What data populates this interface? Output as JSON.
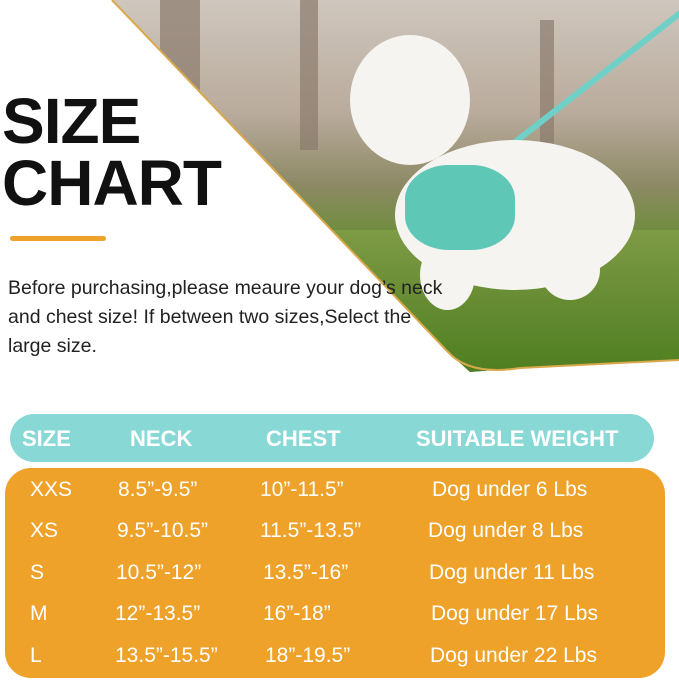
{
  "heading": {
    "line1": "SIZE",
    "line2": "CHART"
  },
  "intro": "Before purchasing,please meaure your dog’s neck and chest size! If between two sizes,Select the large size.",
  "colors": {
    "header": "#88d8d6",
    "table": "#eea22a",
    "accent_line": "#eea22a",
    "text": "#111111"
  },
  "table": {
    "headers": [
      "SIZE",
      "NECK",
      "CHEST",
      "SUITABLE WEIGHT"
    ],
    "rows": [
      [
        "XXS",
        "8.5”-9.5”",
        "10”-11.5”",
        "Dog under 6 Lbs"
      ],
      [
        "XS",
        "9.5”-10.5”",
        "11.5”-13.5”",
        "Dog under 8 Lbs"
      ],
      [
        "S",
        "10.5”-12”",
        "13.5”-16”",
        "Dog under 11 Lbs"
      ],
      [
        "M",
        "12”-13.5”",
        "16”-18”",
        "Dog under 17 Lbs"
      ],
      [
        "L",
        "13.5”-15.5”",
        "18”-19.5”",
        "Dog under 22 Lbs"
      ]
    ]
  }
}
